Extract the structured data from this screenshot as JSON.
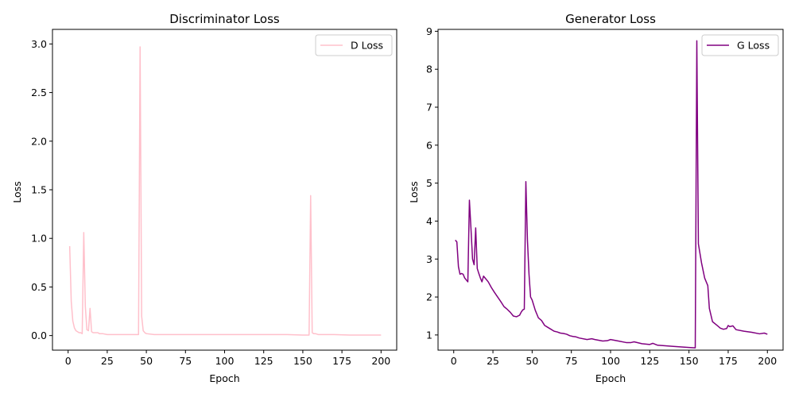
{
  "chart_data": [
    {
      "type": "line",
      "title": "Discriminator Loss",
      "xlabel": "Epoch",
      "ylabel": "Loss",
      "xlim": [
        -10,
        210
      ],
      "ylim": [
        -0.15,
        3.15
      ],
      "xticks": [
        0,
        25,
        50,
        75,
        100,
        125,
        150,
        175,
        200
      ],
      "yticks": [
        0.0,
        0.5,
        1.0,
        1.5,
        2.0,
        2.5,
        3.0
      ],
      "ytick_labels": [
        "0.0",
        "0.5",
        "1.0",
        "1.5",
        "2.0",
        "2.5",
        "3.0"
      ],
      "legend_position": "top-right",
      "grid": false,
      "series": [
        {
          "name": "D Loss",
          "color": "#ffc0cb",
          "points": [
            [
              1,
              0.92
            ],
            [
              2,
              0.35
            ],
            [
              3,
              0.15
            ],
            [
              4,
              0.08
            ],
            [
              5,
              0.05
            ],
            [
              6,
              0.04
            ],
            [
              7,
              0.03
            ],
            [
              8,
              0.03
            ],
            [
              9,
              0.02
            ],
            [
              10,
              1.06
            ],
            [
              11,
              0.3
            ],
            [
              12,
              0.06
            ],
            [
              13,
              0.05
            ],
            [
              14,
              0.28
            ],
            [
              15,
              0.04
            ],
            [
              16,
              0.03
            ],
            [
              17,
              0.03
            ],
            [
              18,
              0.03
            ],
            [
              19,
              0.03
            ],
            [
              20,
              0.02
            ],
            [
              22,
              0.02
            ],
            [
              25,
              0.01
            ],
            [
              30,
              0.01
            ],
            [
              35,
              0.01
            ],
            [
              40,
              0.01
            ],
            [
              45,
              0.01
            ],
            [
              46,
              2.97
            ],
            [
              47,
              0.2
            ],
            [
              48,
              0.05
            ],
            [
              49,
              0.03
            ],
            [
              50,
              0.02
            ],
            [
              55,
              0.01
            ],
            [
              60,
              0.01
            ],
            [
              80,
              0.01
            ],
            [
              100,
              0.01
            ],
            [
              120,
              0.01
            ],
            [
              140,
              0.01
            ],
            [
              150,
              0.005
            ],
            [
              154,
              0.005
            ],
            [
              155,
              1.44
            ],
            [
              156,
              0.03
            ],
            [
              157,
              0.02
            ],
            [
              158,
              0.02
            ],
            [
              160,
              0.01
            ],
            [
              170,
              0.01
            ],
            [
              180,
              0.005
            ],
            [
              190,
              0.005
            ],
            [
              200,
              0.005
            ]
          ]
        }
      ]
    },
    {
      "type": "line",
      "title": "Generator Loss",
      "xlabel": "Epoch",
      "ylabel": "Loss",
      "xlim": [
        -10,
        210
      ],
      "ylim": [
        0.6,
        9.05
      ],
      "xticks": [
        0,
        25,
        50,
        75,
        100,
        125,
        150,
        175,
        200
      ],
      "yticks": [
        1,
        2,
        3,
        4,
        5,
        6,
        7,
        8,
        9
      ],
      "ytick_labels": [
        "1",
        "2",
        "3",
        "4",
        "5",
        "6",
        "7",
        "8",
        "9"
      ],
      "legend_position": "top-right",
      "grid": false,
      "series": [
        {
          "name": "G Loss",
          "color": "#800080",
          "points": [
            [
              1,
              3.5
            ],
            [
              2,
              3.45
            ],
            [
              3,
              2.8
            ],
            [
              4,
              2.6
            ],
            [
              5,
              2.62
            ],
            [
              6,
              2.6
            ],
            [
              7,
              2.5
            ],
            [
              8,
              2.45
            ],
            [
              9,
              2.4
            ],
            [
              10,
              4.55
            ],
            [
              11,
              3.8
            ],
            [
              12,
              3.0
            ],
            [
              13,
              2.85
            ],
            [
              14,
              3.82
            ],
            [
              15,
              2.75
            ],
            [
              16,
              2.62
            ],
            [
              17,
              2.5
            ],
            [
              18,
              2.4
            ],
            [
              19,
              2.55
            ],
            [
              20,
              2.5
            ],
            [
              22,
              2.4
            ],
            [
              24,
              2.25
            ],
            [
              26,
              2.12
            ],
            [
              28,
              2.0
            ],
            [
              30,
              1.88
            ],
            [
              32,
              1.75
            ],
            [
              34,
              1.68
            ],
            [
              36,
              1.6
            ],
            [
              38,
              1.5
            ],
            [
              40,
              1.48
            ],
            [
              42,
              1.52
            ],
            [
              43,
              1.6
            ],
            [
              44,
              1.66
            ],
            [
              45,
              1.68
            ],
            [
              46,
              5.04
            ],
            [
              47,
              3.5
            ],
            [
              48,
              2.6
            ],
            [
              49,
              2.0
            ],
            [
              50,
              1.92
            ],
            [
              52,
              1.65
            ],
            [
              54,
              1.45
            ],
            [
              56,
              1.38
            ],
            [
              58,
              1.25
            ],
            [
              60,
              1.2
            ],
            [
              62,
              1.15
            ],
            [
              64,
              1.1
            ],
            [
              66,
              1.08
            ],
            [
              68,
              1.05
            ],
            [
              70,
              1.04
            ],
            [
              72,
              1.02
            ],
            [
              74,
              0.98
            ],
            [
              76,
              0.96
            ],
            [
              78,
              0.95
            ],
            [
              80,
              0.92
            ],
            [
              85,
              0.88
            ],
            [
              88,
              0.9
            ],
            [
              90,
              0.88
            ],
            [
              95,
              0.84
            ],
            [
              98,
              0.85
            ],
            [
              100,
              0.88
            ],
            [
              105,
              0.84
            ],
            [
              110,
              0.8
            ],
            [
              113,
              0.8
            ],
            [
              115,
              0.82
            ],
            [
              120,
              0.77
            ],
            [
              125,
              0.75
            ],
            [
              127,
              0.78
            ],
            [
              130,
              0.73
            ],
            [
              140,
              0.7
            ],
            [
              150,
              0.67
            ],
            [
              154,
              0.66
            ],
            [
              155,
              8.75
            ],
            [
              156,
              3.4
            ],
            [
              158,
              2.9
            ],
            [
              160,
              2.5
            ],
            [
              162,
              2.3
            ],
            [
              163,
              1.7
            ],
            [
              165,
              1.35
            ],
            [
              168,
              1.25
            ],
            [
              170,
              1.18
            ],
            [
              172,
              1.15
            ],
            [
              174,
              1.17
            ],
            [
              175,
              1.25
            ],
            [
              176,
              1.22
            ],
            [
              178,
              1.24
            ],
            [
              180,
              1.14
            ],
            [
              185,
              1.1
            ],
            [
              190,
              1.07
            ],
            [
              195,
              1.03
            ],
            [
              198,
              1.05
            ],
            [
              200,
              1.02
            ]
          ]
        }
      ]
    }
  ]
}
